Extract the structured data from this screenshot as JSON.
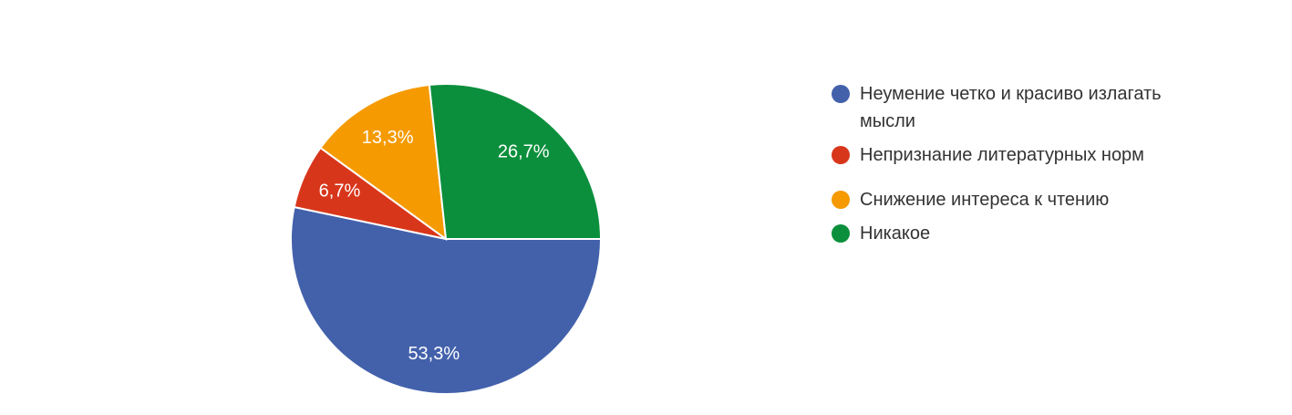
{
  "chart_data": {
    "type": "pie",
    "categories": [
      "Неумение четко и красиво излагать мысли",
      "Непризнание литературных норм",
      "Снижение интереса к чтению",
      "Никакое"
    ],
    "values": [
      53.3,
      6.7,
      13.3,
      26.7
    ],
    "value_labels": [
      "53,3%",
      "6,7%",
      "13,3%",
      "26,7%"
    ],
    "colors": [
      "#4361ab",
      "#d8361b",
      "#f59a00",
      "#0b8f3c"
    ],
    "legend": "right"
  }
}
